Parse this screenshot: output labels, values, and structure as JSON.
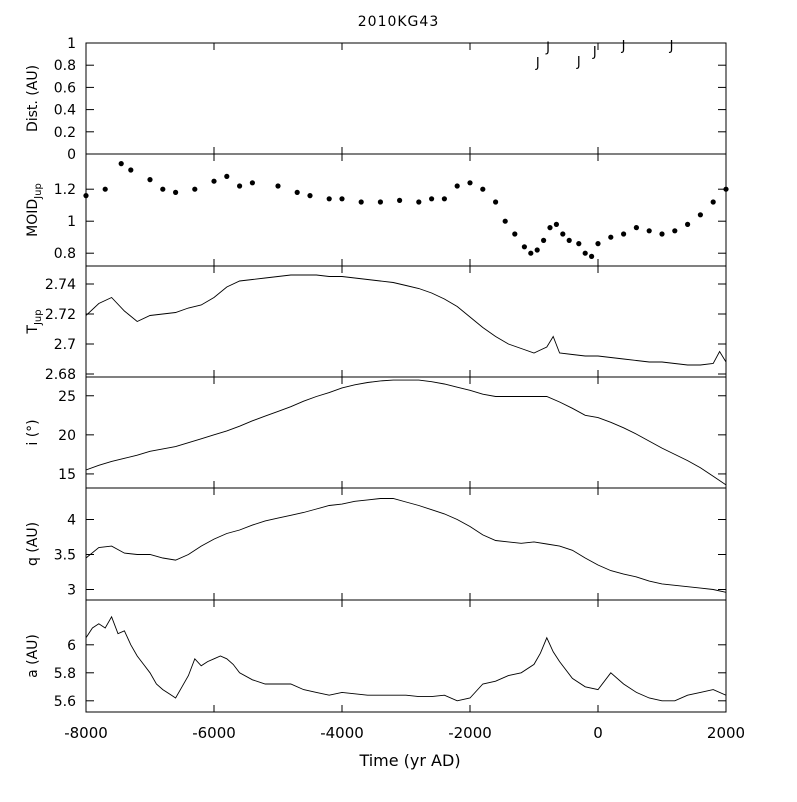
{
  "chart_data": {
    "type": "line",
    "title": "2010KG43",
    "xlabel": "Time (yr AD)",
    "xlim": [
      -8000,
      2000
    ],
    "x_ticks": [
      -8000,
      -6000,
      -4000,
      -2000,
      0,
      2000
    ],
    "x_tick_labels": [
      "-8000",
      "-6000",
      "-4000",
      "-2000",
      "0",
      "2000"
    ],
    "panels": [
      {
        "id": "dist",
        "ylabel": "Dist. (AU)",
        "ylim": [
          0,
          1
        ],
        "y_ticks": [
          0,
          0.2,
          0.4,
          0.6,
          0.8,
          1
        ],
        "y_tick_labels": [
          "0",
          "0.2",
          "0.4",
          "0.6",
          "0.8",
          "1"
        ],
        "style": "markers",
        "marker_label": "J",
        "series": [
          {
            "name": "J",
            "x": [
              -940,
              -780,
              -300,
              -50,
              400,
              1150
            ],
            "y": [
              0.83,
              0.97,
              0.84,
              0.93,
              0.98,
              0.98
            ]
          }
        ]
      },
      {
        "id": "moid",
        "ylabel": "MOID",
        "ylabel_sub": "Jup",
        "ylim": [
          0.72,
          1.42
        ],
        "y_ticks": [
          0.8,
          1,
          1.2
        ],
        "y_tick_labels": [
          "0.8",
          "1",
          "1.2"
        ],
        "style": "scatter",
        "series": [
          {
            "x": [
              -8000,
              -7700,
              -7450,
              -7300,
              -7000,
              -6800,
              -6600,
              -6300,
              -6000,
              -5800,
              -5600,
              -5400,
              -5000,
              -4700,
              -4500,
              -4200,
              -4000,
              -3700,
              -3400,
              -3100,
              -2800,
              -2600,
              -2400,
              -2200,
              -2000,
              -1800,
              -1600,
              -1450,
              -1300,
              -1150,
              -1050,
              -950,
              -850,
              -750,
              -650,
              -550,
              -450,
              -300,
              -200,
              -100,
              0,
              200,
              400,
              600,
              800,
              1000,
              1200,
              1400,
              1600,
              1800,
              2000
            ],
            "y": [
              1.16,
              1.2,
              1.36,
              1.32,
              1.26,
              1.2,
              1.18,
              1.2,
              1.25,
              1.28,
              1.22,
              1.24,
              1.22,
              1.18,
              1.16,
              1.14,
              1.14,
              1.12,
              1.12,
              1.13,
              1.12,
              1.14,
              1.14,
              1.22,
              1.24,
              1.2,
              1.12,
              1.0,
              0.92,
              0.84,
              0.8,
              0.82,
              0.88,
              0.96,
              0.98,
              0.92,
              0.88,
              0.86,
              0.8,
              0.78,
              0.86,
              0.9,
              0.92,
              0.96,
              0.94,
              0.92,
              0.94,
              0.98,
              1.04,
              1.12,
              1.2
            ]
          }
        ]
      },
      {
        "id": "tjup",
        "ylabel": "T",
        "ylabel_sub": "Jup",
        "ylim": [
          2.678,
          2.752
        ],
        "y_ticks": [
          2.68,
          2.7,
          2.72,
          2.74
        ],
        "y_tick_labels": [
          "2.68",
          "2.7",
          "2.72",
          "2.74"
        ],
        "style": "line",
        "series": [
          {
            "x": [
              -8000,
              -7800,
              -7600,
              -7400,
              -7200,
              -7000,
              -6800,
              -6600,
              -6400,
              -6200,
              -6000,
              -5800,
              -5600,
              -5400,
              -5200,
              -5000,
              -4800,
              -4600,
              -4400,
              -4200,
              -4000,
              -3800,
              -3600,
              -3400,
              -3200,
              -3000,
              -2800,
              -2600,
              -2400,
              -2200,
              -2000,
              -1800,
              -1600,
              -1400,
              -1200,
              -1000,
              -900,
              -800,
              -700,
              -600,
              -400,
              -200,
              0,
              200,
              400,
              600,
              800,
              1000,
              1200,
              1400,
              1600,
              1800,
              1900,
              2000
            ],
            "y": [
              2.719,
              2.727,
              2.731,
              2.722,
              2.715,
              2.719,
              2.72,
              2.721,
              2.724,
              2.726,
              2.731,
              2.738,
              2.742,
              2.743,
              2.744,
              2.745,
              2.746,
              2.746,
              2.746,
              2.745,
              2.745,
              2.744,
              2.743,
              2.742,
              2.741,
              2.739,
              2.737,
              2.734,
              2.73,
              2.725,
              2.718,
              2.711,
              2.705,
              2.7,
              2.697,
              2.694,
              2.696,
              2.698,
              2.705,
              2.694,
              2.693,
              2.692,
              2.692,
              2.691,
              2.69,
              2.689,
              2.688,
              2.688,
              2.687,
              2.686,
              2.686,
              2.687,
              2.695,
              2.688
            ]
          }
        ]
      },
      {
        "id": "incl",
        "ylabel": "i (°)",
        "ylim": [
          13.2,
          27.4
        ],
        "y_ticks": [
          15,
          20,
          25
        ],
        "y_tick_labels": [
          "15",
          "20",
          "25"
        ],
        "style": "line",
        "series": [
          {
            "x": [
              -8000,
              -7800,
              -7600,
              -7400,
              -7200,
              -7000,
              -6800,
              -6600,
              -6400,
              -6200,
              -6000,
              -5800,
              -5600,
              -5400,
              -5200,
              -5000,
              -4800,
              -4600,
              -4400,
              -4200,
              -4000,
              -3800,
              -3600,
              -3400,
              -3200,
              -3000,
              -2800,
              -2600,
              -2400,
              -2200,
              -2000,
              -1800,
              -1600,
              -1400,
              -1200,
              -1000,
              -800,
              -600,
              -400,
              -200,
              0,
              200,
              400,
              600,
              800,
              1000,
              1200,
              1400,
              1600,
              1800,
              2000
            ],
            "y": [
              15.5,
              16.1,
              16.6,
              17.0,
              17.4,
              17.9,
              18.2,
              18.5,
              19.0,
              19.5,
              20.0,
              20.5,
              21.1,
              21.8,
              22.4,
              23.0,
              23.6,
              24.3,
              24.9,
              25.4,
              26.0,
              26.4,
              26.7,
              26.9,
              27.0,
              27.0,
              27.0,
              26.8,
              26.5,
              26.1,
              25.7,
              25.2,
              24.9,
              24.9,
              24.9,
              24.9,
              24.9,
              24.2,
              23.4,
              22.5,
              22.2,
              21.6,
              20.9,
              20.1,
              19.2,
              18.3,
              17.5,
              16.7,
              15.8,
              14.7,
              13.6
            ]
          }
        ]
      },
      {
        "id": "q",
        "ylabel": "q (AU)",
        "ylim": [
          2.85,
          4.45
        ],
        "y_ticks": [
          3,
          3.5,
          4
        ],
        "y_tick_labels": [
          "3",
          "3.5",
          "4"
        ],
        "style": "line",
        "series": [
          {
            "x": [
              -8000,
              -7800,
              -7600,
              -7400,
              -7200,
              -7000,
              -6800,
              -6600,
              -6400,
              -6200,
              -6000,
              -5800,
              -5600,
              -5400,
              -5200,
              -5000,
              -4800,
              -4600,
              -4400,
              -4200,
              -4000,
              -3800,
              -3600,
              -3400,
              -3200,
              -3000,
              -2800,
              -2600,
              -2400,
              -2200,
              -2000,
              -1800,
              -1600,
              -1400,
              -1200,
              -1000,
              -800,
              -600,
              -400,
              -200,
              0,
              200,
              400,
              600,
              800,
              1000,
              1200,
              1400,
              1600,
              1800,
              2000
            ],
            "y": [
              3.45,
              3.6,
              3.62,
              3.52,
              3.5,
              3.5,
              3.45,
              3.42,
              3.5,
              3.62,
              3.72,
              3.8,
              3.85,
              3.92,
              3.98,
              4.02,
              4.06,
              4.1,
              4.15,
              4.2,
              4.22,
              4.26,
              4.28,
              4.3,
              4.3,
              4.25,
              4.2,
              4.14,
              4.08,
              4.0,
              3.9,
              3.78,
              3.7,
              3.68,
              3.66,
              3.68,
              3.65,
              3.62,
              3.56,
              3.45,
              3.35,
              3.27,
              3.22,
              3.18,
              3.12,
              3.08,
              3.06,
              3.04,
              3.02,
              3.0,
              2.96
            ]
          }
        ]
      },
      {
        "id": "a",
        "ylabel": "a (AU)",
        "ylim": [
          5.52,
          6.32
        ],
        "y_ticks": [
          5.6,
          5.8,
          6
        ],
        "y_tick_labels": [
          "5.6",
          "5.8",
          "6"
        ],
        "style": "line",
        "series": [
          {
            "x": [
              -8000,
              -7900,
              -7800,
              -7700,
              -7600,
              -7500,
              -7400,
              -7300,
              -7200,
              -7100,
              -7000,
              -6900,
              -6800,
              -6700,
              -6600,
              -6500,
              -6400,
              -6300,
              -6200,
              -6100,
              -6000,
              -5900,
              -5800,
              -5700,
              -5600,
              -5400,
              -5200,
              -5000,
              -4800,
              -4600,
              -4400,
              -4200,
              -4000,
              -3800,
              -3600,
              -3400,
              -3200,
              -3000,
              -2800,
              -2600,
              -2400,
              -2200,
              -2000,
              -1800,
              -1600,
              -1400,
              -1200,
              -1000,
              -900,
              -800,
              -700,
              -600,
              -400,
              -200,
              0,
              200,
              400,
              600,
              800,
              1000,
              1200,
              1400,
              1600,
              1800,
              2000
            ],
            "y": [
              6.05,
              6.12,
              6.15,
              6.12,
              6.2,
              6.08,
              6.1,
              6.0,
              5.92,
              5.86,
              5.8,
              5.72,
              5.68,
              5.65,
              5.62,
              5.7,
              5.78,
              5.9,
              5.85,
              5.88,
              5.9,
              5.92,
              5.9,
              5.86,
              5.8,
              5.75,
              5.72,
              5.72,
              5.72,
              5.68,
              5.66,
              5.64,
              5.66,
              5.65,
              5.64,
              5.64,
              5.64,
              5.64,
              5.63,
              5.63,
              5.64,
              5.6,
              5.62,
              5.72,
              5.74,
              5.78,
              5.8,
              5.86,
              5.94,
              6.05,
              5.95,
              5.88,
              5.76,
              5.7,
              5.68,
              5.8,
              5.72,
              5.66,
              5.62,
              5.6,
              5.6,
              5.64,
              5.66,
              5.68,
              5.64
            ]
          }
        ]
      }
    ]
  }
}
